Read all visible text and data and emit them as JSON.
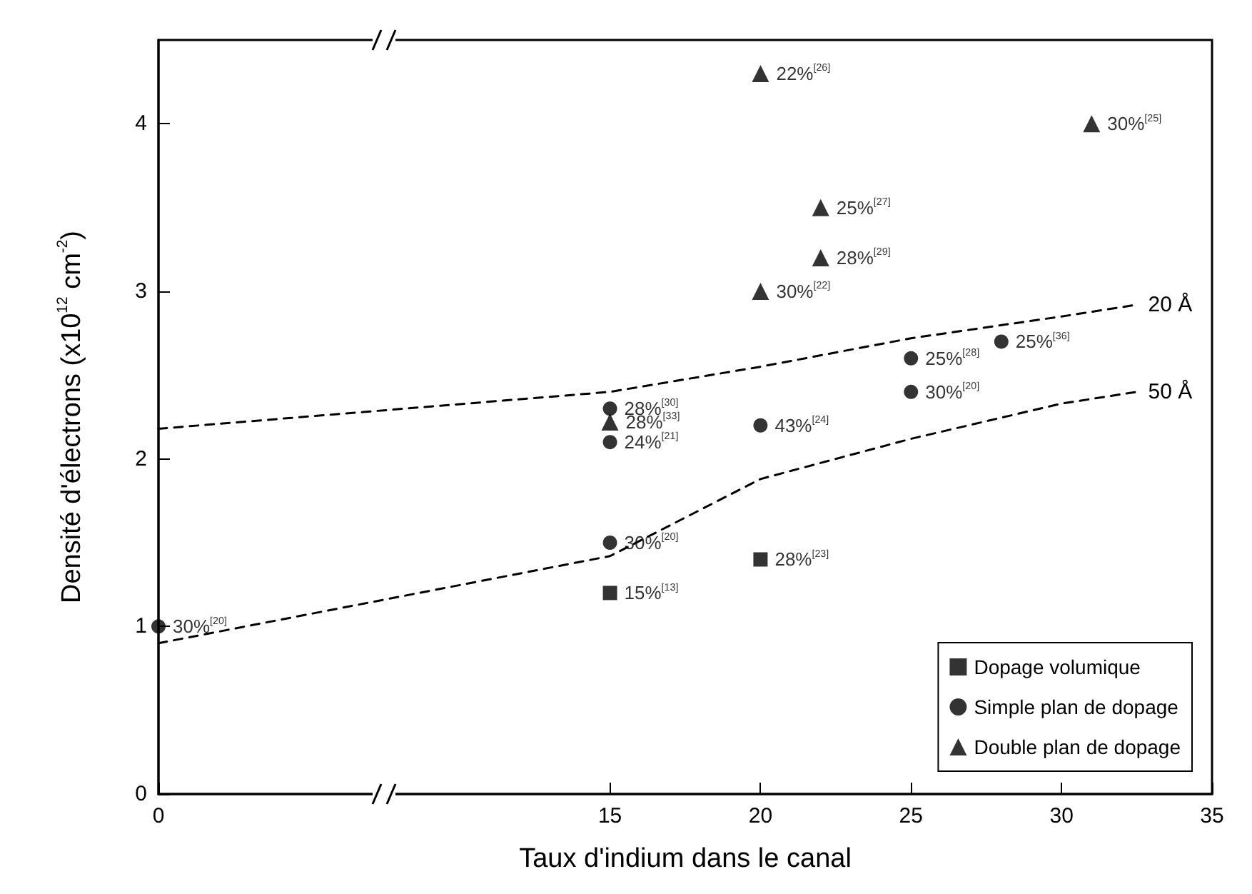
{
  "chart_data": {
    "type": "scatter",
    "xlabel": "Taux d'indium dans le canal",
    "ylabel": "Densité d'électrons (x10$^{12}$ cm$^{-2}$)",
    "xlim": [
      0,
      35
    ],
    "xticks": [
      0,
      15,
      20,
      25,
      30,
      35
    ],
    "ylim": [
      0,
      4.5
    ],
    "yticks": [
      0,
      1,
      2,
      3,
      4
    ],
    "grid": false,
    "legend": "bottom right",
    "series": [
      {
        "name": "Dopage volumique",
        "marker": "square",
        "color": "#000000",
        "x": [
          15,
          20
        ],
        "values": [
          1.2,
          1.4
        ],
        "value_labels": [
          "15%$^{[13]}$",
          "28%$^{[23]}$"
        ]
      },
      {
        "name": "Simple plan de dopage",
        "marker": "circle",
        "color": "#000000",
        "x": [
          0,
          15,
          15,
          15,
          20,
          25,
          25,
          28
        ],
        "values": [
          1.0,
          1.5,
          2.1,
          2.3,
          2.2,
          2.6,
          2.4,
          2.7
        ],
        "value_labels": [
          "30%$^{[20]}$",
          "30%$^{[20]}$",
          "24%$^{[21]}$",
          "28%$^{[30]}$",
          "43%$^{[24]}$",
          "25%$^{[28]}$",
          "30%$^{[20]}$",
          "25%$^{[36]}$"
        ]
      },
      {
        "name": "Double plan de dopage",
        "marker": "triangle",
        "color": "#000000",
        "x": [
          15,
          20,
          20,
          22,
          22,
          31
        ],
        "values": [
          2.22,
          3.0,
          4.3,
          3.5,
          3.2,
          4.0
        ],
        "value_labels": [
          "28%$^{[33]}$",
          "30%$^{[22]}$",
          "22%$^{[26]}$",
          "25%$^{[27]}$",
          "28%$^{[29]}$",
          "30%$^{[25]}$"
        ]
      },
      {
        "name": "20 Å",
        "type": "line",
        "marker": "none",
        "line_style": "dashed",
        "color": "#000000",
        "x": [
          0,
          15,
          20,
          25,
          30,
          32.5
        ],
        "values": [
          2.18,
          2.4,
          2.55,
          2.72,
          2.85,
          2.92
        ]
      },
      {
        "name": "50 Å",
        "type": "line",
        "marker": "none",
        "line_style": "dashed",
        "color": "#000000",
        "x": [
          0,
          15,
          20,
          25,
          30,
          32.5
        ],
        "values": [
          0.9,
          1.42,
          1.88,
          2.12,
          2.33,
          2.4
        ]
      }
    ]
  }
}
